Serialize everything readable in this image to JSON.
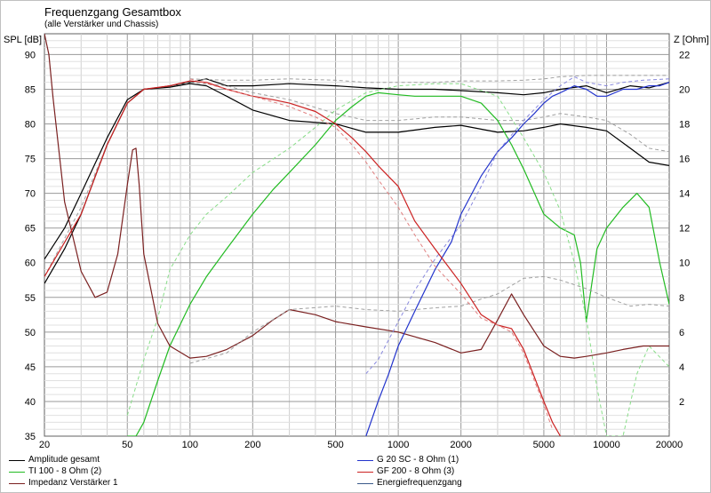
{
  "chart_data": {
    "type": "line",
    "title": "Frequenzgang Gesamtbox",
    "subtitle": "(alle Verstärker und Chassis)",
    "ylabel_left": "SPL [dB]",
    "ylabel_right": "Z [Ohm]",
    "x_scale": "log",
    "xlim": [
      20,
      20000
    ],
    "ylim_left": [
      35,
      93
    ],
    "ylim_right": [
      0,
      23.2
    ],
    "x_ticks": [
      20,
      50,
      100,
      200,
      500,
      1000,
      2000,
      5000,
      10000,
      20000
    ],
    "x_tick_labels": [
      "20",
      "50",
      "100",
      "200",
      "500",
      "1000",
      "2000",
      "5000",
      "10000",
      "20000"
    ],
    "y_ticks_left": [
      35,
      40,
      45,
      50,
      55,
      60,
      65,
      70,
      75,
      80,
      85,
      90
    ],
    "y_ticks_right": [
      2,
      4,
      6,
      8,
      10,
      12,
      14,
      16,
      18,
      20,
      22
    ],
    "grid": true,
    "series": [
      {
        "name": "Amplitude gesamt",
        "color": "#000000",
        "axis": "left",
        "x": [
          20,
          25,
          30,
          40,
          50,
          60,
          70,
          80,
          100,
          120,
          150,
          200,
          300,
          500,
          700,
          1000,
          1500,
          2000,
          3000,
          4000,
          5000,
          6000,
          8000,
          10000,
          13000,
          16000,
          20000
        ],
        "y": [
          57,
          62,
          67,
          77,
          83,
          85,
          85.2,
          85.5,
          86,
          86.5,
          85.5,
          85.5,
          85.8,
          85.5,
          85.2,
          85,
          85,
          84.8,
          84.5,
          84.2,
          84.5,
          85,
          85.5,
          84.5,
          85.5,
          85.2,
          86
        ]
      },
      {
        "name": "Amplitude gesamt",
        "color": "#000000",
        "axis": "left",
        "x": [
          20,
          25,
          30,
          40,
          50,
          60,
          80,
          100,
          120,
          150,
          200,
          300,
          500,
          700,
          1000,
          1500,
          2000,
          3000,
          4000,
          5000,
          6000,
          8000,
          10000,
          13000,
          16000,
          20000
        ],
        "y": [
          60.5,
          65,
          70,
          78,
          83.5,
          85,
          85.3,
          85.8,
          85.5,
          84,
          82,
          80.5,
          80,
          78.8,
          78.8,
          79.5,
          79.8,
          78.8,
          79,
          79.5,
          80,
          79.5,
          79,
          76.5,
          74.5,
          74
        ]
      },
      {
        "name": "Amplitude gesamt",
        "color": "#a0a0a0",
        "dash": "4,3",
        "axis": "left",
        "x": [
          20,
          30,
          40,
          50,
          60,
          80,
          100,
          150,
          200,
          300,
          500,
          700,
          1000,
          1500,
          2000,
          3000,
          4000,
          5000,
          6000,
          8000,
          10000,
          13000,
          16000,
          20000
        ],
        "y": [
          58,
          68,
          77,
          83,
          85,
          85.5,
          86,
          85.5,
          84.5,
          83.5,
          81.5,
          80.5,
          80.5,
          81,
          81,
          80.5,
          80.5,
          81,
          81.5,
          81,
          80.5,
          78.5,
          76.5,
          76
        ]
      },
      {
        "name": "Amplitude gesamt",
        "color": "#a0a0a0",
        "dash": "4,3",
        "axis": "left",
        "x": [
          100,
          150,
          200,
          300,
          500,
          700,
          1000,
          1500,
          2000,
          3000,
          4000,
          5000,
          6000,
          8000,
          10000,
          13000,
          16000,
          20000
        ],
        "y": [
          86.5,
          86.3,
          86.3,
          86.5,
          86.3,
          86,
          86,
          86,
          86.2,
          86.2,
          86.3,
          86.5,
          86.8,
          87,
          87,
          87,
          87,
          87
        ]
      },
      {
        "name": "TI 100 - 8 Ohm (2)",
        "color": "#22bb22",
        "axis": "left",
        "x": [
          50,
          55,
          60,
          70,
          80,
          100,
          120,
          150,
          200,
          250,
          300,
          400,
          500,
          600,
          700,
          800,
          1000,
          1200,
          1500,
          2000,
          2500,
          3000,
          3500,
          4000,
          5000,
          6000,
          7000,
          7500,
          8000,
          8500,
          9000,
          10000,
          12000,
          14000,
          16000,
          18000,
          20000
        ],
        "y": [
          32,
          34,
          37,
          43,
          48,
          54,
          58,
          62,
          67,
          70.5,
          73,
          77,
          80.5,
          82.5,
          84,
          84.5,
          84.2,
          84,
          84,
          84,
          83,
          80.5,
          77,
          73.5,
          67,
          65,
          64,
          60,
          51.5,
          57,
          62,
          65,
          68,
          70,
          68,
          60,
          54
        ]
      },
      {
        "name": "TI 100 - 8 Ohm (2)",
        "color": "#88dd88",
        "dash": "4,3",
        "axis": "left",
        "x": [
          50,
          60,
          70,
          80,
          100,
          120,
          150,
          200,
          300,
          400,
          500,
          700,
          1000,
          1500,
          2000,
          3000,
          4000,
          5000,
          6000,
          7000,
          8000,
          9000,
          10000,
          12000,
          14000,
          16000,
          20000
        ],
        "y": [
          38,
          46,
          52,
          59,
          64,
          67,
          69.5,
          73,
          76.5,
          79.5,
          82,
          84.5,
          85.5,
          85.8,
          85.8,
          84,
          78,
          73,
          67.5,
          60,
          52,
          42,
          35,
          35,
          44,
          48,
          45
        ]
      },
      {
        "name": "Impedanz Verstärker 1",
        "color": "#7a2020",
        "axis": "right",
        "x": [
          20,
          21,
          22,
          25,
          30,
          35,
          40,
          45,
          50,
          53,
          55,
          57,
          60,
          70,
          80,
          100,
          120,
          150,
          200,
          250,
          300,
          400,
          500,
          700,
          1000,
          1500,
          2000,
          2500,
          3000,
          3500,
          4000,
          5000,
          6000,
          7000,
          8000,
          10000,
          12000,
          15000,
          20000
        ],
        "y": [
          24,
          22,
          19.5,
          13.5,
          9.5,
          8,
          8.3,
          10.5,
          14.5,
          16.5,
          16.6,
          14.5,
          10.5,
          6.5,
          5.2,
          4.5,
          4.6,
          5,
          5.8,
          6.7,
          7.3,
          7,
          6.6,
          6.3,
          6,
          5.4,
          4.8,
          5,
          6.7,
          8.2,
          7,
          5.2,
          4.6,
          4.5,
          4.6,
          4.8,
          5,
          5.2,
          5.2
        ]
      },
      {
        "name": "Impedanz Verstärker 1",
        "color": "#a0a0a0",
        "dash": "4,3",
        "axis": "right",
        "x": [
          100,
          150,
          200,
          300,
          500,
          700,
          1000,
          1500,
          2000,
          2500,
          3000,
          4000,
          5000,
          6000,
          8000,
          10000,
          13000,
          16000,
          20000
        ],
        "y": [
          4.2,
          4.8,
          6,
          7.3,
          7.5,
          7.3,
          7.2,
          7.4,
          7.5,
          7.9,
          8.2,
          9.1,
          9.2,
          9,
          8.5,
          8,
          7.5,
          7.6,
          7.5
        ]
      },
      {
        "name": "G 20 SC - 8 Ohm (1)",
        "color": "#2233cc",
        "axis": "left",
        "x": [
          700,
          800,
          900,
          1000,
          1200,
          1500,
          1800,
          2000,
          2500,
          3000,
          3500,
          4000,
          4500,
          5000,
          5500,
          6000,
          7000,
          8000,
          9000,
          10000,
          12000,
          14000,
          16000,
          18000,
          20000
        ],
        "y": [
          35,
          40,
          44,
          48,
          53,
          59,
          63,
          67,
          72.5,
          76,
          78,
          80,
          81.5,
          83,
          84,
          84.5,
          85.5,
          85,
          84,
          84,
          85,
          85,
          85.5,
          85.5,
          86
        ]
      },
      {
        "name": "G 20 SC - 8 Ohm (1)",
        "color": "#8888dd",
        "dash": "4,3",
        "axis": "left",
        "x": [
          700,
          800,
          1000,
          1200,
          1500,
          2000,
          2500,
          3000,
          4000,
          5000,
          6000,
          7000,
          8000,
          10000,
          12000,
          15000,
          20000
        ],
        "y": [
          44,
          46,
          51.5,
          56,
          60.5,
          65.5,
          71,
          76,
          80.5,
          83.5,
          85.5,
          86.8,
          86,
          85.5,
          86,
          86.3,
          86.5
        ]
      },
      {
        "name": "GF 200 - 8 Ohm (3)",
        "color": "#cc2222",
        "axis": "left",
        "x": [
          20,
          30,
          40,
          50,
          60,
          80,
          100,
          120,
          150,
          200,
          250,
          300,
          400,
          500,
          600,
          700,
          800,
          1000,
          1200,
          1500,
          2000,
          2500,
          3000,
          3500,
          4000,
          5000,
          5500,
          6000
        ],
        "y": [
          58,
          67,
          77,
          83,
          85,
          85.5,
          86.2,
          86,
          85,
          84,
          83.5,
          83,
          81.8,
          80,
          78,
          76,
          74,
          71,
          66,
          62,
          57,
          52.5,
          51,
          50.5,
          47.5,
          40,
          37,
          35
        ]
      },
      {
        "name": "GF 200 - 8 Ohm (3)",
        "color": "#e08080",
        "dash": "4,3",
        "axis": "left",
        "x": [
          100,
          150,
          200,
          300,
          400,
          500,
          600,
          700,
          800,
          1000,
          1200,
          1500,
          2000,
          2500,
          3000,
          3500,
          4000,
          5000,
          5500
        ],
        "y": [
          86.5,
          85,
          84,
          82.5,
          81,
          79.5,
          77,
          74.5,
          72,
          68,
          64,
          59.5,
          55.5,
          52,
          51,
          50,
          47,
          39.5,
          36
        ]
      }
    ],
    "legend": [
      {
        "label": "Amplitude gesamt",
        "color": "#000000"
      },
      {
        "label": "TI 100 - 8 Ohm (2)",
        "color": "#22bb22"
      },
      {
        "label": "Impedanz Verstärker 1",
        "color": "#7a2020"
      },
      {
        "label": "G 20 SC - 8 Ohm (1)",
        "color": "#2233cc"
      },
      {
        "label": "GF 200 - 8 Ohm (3)",
        "color": "#cc2222"
      },
      {
        "label": "Energiefrequenzgang",
        "color": "#3a5a8a"
      }
    ],
    "legend_placement": "bottom"
  }
}
